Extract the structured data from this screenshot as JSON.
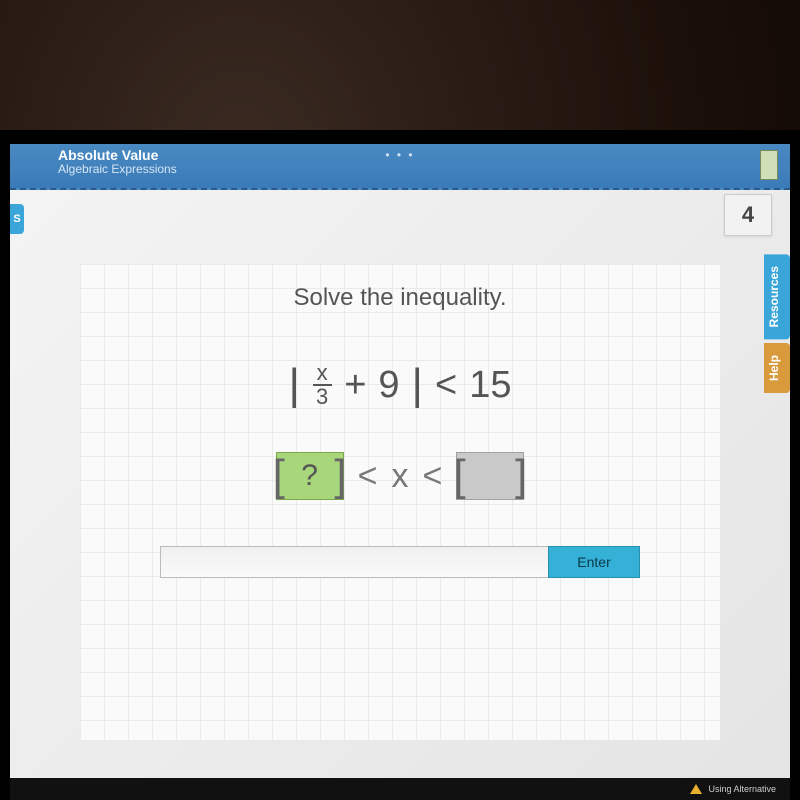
{
  "header": {
    "title": "Absolute Value",
    "subtitle": "Algebraic Expressions",
    "dots": "• • •",
    "colors": {
      "bar_top": "#4a8ac2",
      "bar_bottom": "#3a7ab8",
      "text": "#ffffff"
    }
  },
  "left_tab": {
    "label": "S",
    "color": "#3aa5d8"
  },
  "badge": {
    "value": "4",
    "bg": "#f2f2f2",
    "text_color": "#444444"
  },
  "side_tabs": {
    "resources": {
      "label": "Resources",
      "color": "#3aa5d8"
    },
    "help": {
      "label": "Help",
      "color": "#d89a3a"
    }
  },
  "content": {
    "prompt": "Solve the inequality.",
    "prompt_fontsize": 24,
    "prompt_color": "#555555",
    "equation": {
      "frac_num": "x",
      "frac_den": "3",
      "plus": "+",
      "addend": "9",
      "op": "<",
      "rhs": "15",
      "fontsize": 38,
      "color": "#555555"
    },
    "answer_template": {
      "slot1_placeholder": "?",
      "op1": "<",
      "var": "x",
      "op2": "<",
      "slot2_placeholder": " ",
      "slot_green_bg": "#a8d67a",
      "slot_grey_bg": "#c9c9c9"
    },
    "grid_color": "#eaeaea",
    "grid_bg": "#fafafa"
  },
  "input": {
    "value": "",
    "placeholder": "",
    "enter_label": "Enter",
    "enter_bg": "#35b0d6"
  },
  "footer": {
    "text": "Using Alternative",
    "bg": "#111111",
    "warn_color": "#e8b030"
  }
}
